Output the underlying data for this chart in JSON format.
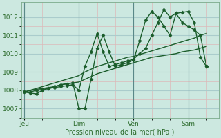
{
  "background_color": "#cce8e0",
  "plot_bg_color": "#cce8e0",
  "grid_color_major": "#aacccc",
  "grid_color_minor": "#d4e8e4",
  "line_color": "#1a5c2a",
  "xlabel": "Pression niveau de la mer( hPa )",
  "ylim": [
    1006.5,
    1012.8
  ],
  "yticks": [
    1007,
    1008,
    1009,
    1010,
    1011,
    1012
  ],
  "xtick_labels": [
    "Jeu",
    "Dim",
    "Ven",
    "Sam"
  ],
  "xtick_positions": [
    0,
    9,
    18,
    27
  ],
  "vline_positions": [
    0,
    9,
    18,
    27
  ],
  "xlim": [
    -0.5,
    32
  ],
  "series": [
    {
      "x": [
        0,
        1,
        2,
        3,
        4,
        5,
        6,
        7,
        8,
        9,
        10,
        11,
        12,
        13,
        14,
        15,
        16,
        17,
        18,
        19,
        20,
        21,
        22,
        23,
        24,
        25,
        26,
        27,
        28,
        29,
        30
      ],
      "y": [
        1007.9,
        1008.0,
        1008.05,
        1008.1,
        1008.15,
        1008.2,
        1008.3,
        1008.35,
        1008.4,
        1008.45,
        1008.6,
        1008.75,
        1008.9,
        1009.0,
        1009.1,
        1009.2,
        1009.3,
        1009.4,
        1009.5,
        1009.6,
        1009.7,
        1009.8,
        1009.85,
        1009.9,
        1009.95,
        1010.0,
        1010.1,
        1010.15,
        1010.2,
        1010.3,
        1010.4
      ],
      "marker": null,
      "linewidth": 1.0,
      "linestyle": "-"
    },
    {
      "x": [
        0,
        1,
        2,
        3,
        4,
        5,
        6,
        7,
        8,
        9,
        10,
        11,
        12,
        13,
        14,
        15,
        16,
        17,
        18,
        19,
        20,
        21,
        22,
        23,
        24,
        25,
        26,
        27,
        28,
        29,
        30
      ],
      "y": [
        1007.9,
        1008.0,
        1008.1,
        1008.2,
        1008.3,
        1008.4,
        1008.5,
        1008.6,
        1008.7,
        1008.8,
        1009.0,
        1009.15,
        1009.3,
        1009.4,
        1009.5,
        1009.6,
        1009.7,
        1009.8,
        1009.85,
        1009.95,
        1010.05,
        1010.15,
        1010.25,
        1010.35,
        1010.45,
        1010.55,
        1010.65,
        1010.75,
        1010.85,
        1011.0,
        1011.1
      ],
      "marker": null,
      "linewidth": 1.0,
      "linestyle": "-"
    },
    {
      "x": [
        0,
        1,
        2,
        3,
        4,
        5,
        6,
        7,
        8,
        9,
        10,
        11,
        12,
        13,
        14,
        15,
        16,
        17,
        18,
        19,
        20,
        21,
        22,
        23,
        24,
        25,
        26,
        27,
        28,
        29,
        30
      ],
      "y": [
        1007.9,
        1007.9,
        1008.0,
        1008.05,
        1008.1,
        1008.15,
        1008.2,
        1008.25,
        1008.3,
        1008.0,
        1009.3,
        1010.1,
        1011.1,
        1010.1,
        1009.3,
        1009.4,
        1009.5,
        1009.6,
        1009.7,
        1010.0,
        1010.3,
        1011.0,
        1011.7,
        1012.4,
        1012.0,
        1012.2,
        1011.7,
        1011.5,
        1011.3,
        1011.0,
        1009.3
      ],
      "marker": "D",
      "markersize": 2.5,
      "linewidth": 1.0,
      "linestyle": "-"
    },
    {
      "x": [
        0,
        1,
        2,
        3,
        4,
        5,
        6,
        7,
        8,
        9,
        10,
        11,
        12,
        13,
        14,
        15,
        16,
        17,
        18,
        19,
        20,
        21,
        22,
        23,
        24,
        25,
        26,
        27,
        28,
        29,
        30
      ],
      "y": [
        1007.9,
        1007.85,
        1007.8,
        1008.0,
        1008.1,
        1008.2,
        1008.3,
        1008.35,
        1008.4,
        1007.0,
        1007.0,
        1008.6,
        1010.3,
        1011.0,
        1010.1,
        1009.3,
        1009.4,
        1009.5,
        1009.65,
        1010.7,
        1011.85,
        1012.3,
        1012.0,
        1011.5,
        1011.0,
        1012.2,
        1012.25,
        1012.3,
        1011.7,
        1009.8,
        1009.3
      ],
      "marker": "D",
      "markersize": 2.5,
      "linewidth": 1.0,
      "linestyle": "-"
    }
  ]
}
